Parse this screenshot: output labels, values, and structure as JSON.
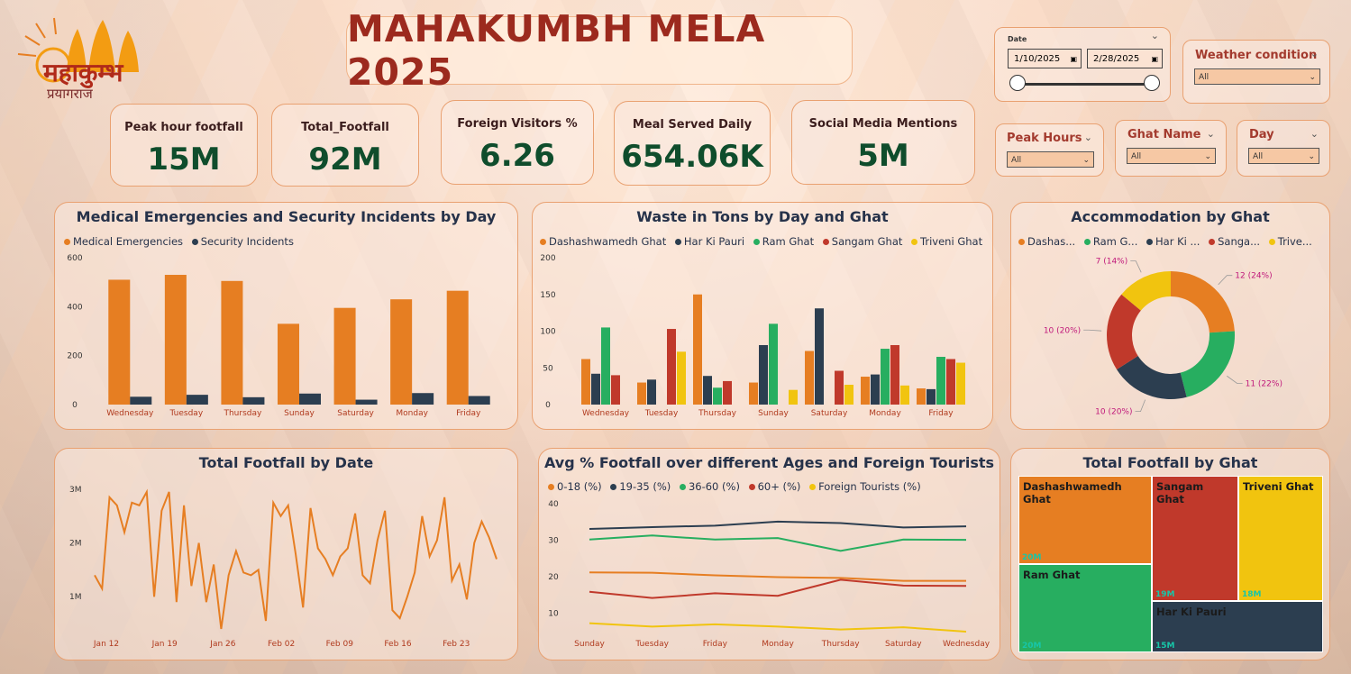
{
  "header": {
    "title": "MAHAKUMBH MELA 2025",
    "logo_text_main": "महाकुम्भ",
    "logo_text_sub": "प्रयागराज"
  },
  "kpis": [
    {
      "label": "Peak hour footfall",
      "value": "15M"
    },
    {
      "label": "Total_Footfall",
      "value": "92M"
    },
    {
      "label": "Foreign Visitors %",
      "value": "6.26"
    },
    {
      "label": "Meal Served Daily",
      "value": "654.06K"
    },
    {
      "label": "Social Media Mentions",
      "value": "5M"
    }
  ],
  "filters": {
    "date": {
      "label": "Date",
      "start": "1/10/2025",
      "end": "2/28/2025"
    },
    "weather": {
      "label": "Weather condition",
      "value": "All"
    },
    "peak_hours": {
      "label": "Peak Hours",
      "value": "All"
    },
    "ghat_name": {
      "label": "Ghat Name",
      "value": "All"
    },
    "day": {
      "label": "Day",
      "value": "All"
    }
  },
  "colors": {
    "orange": "#e67e22",
    "navy": "#2c3e50",
    "green": "#27ae60",
    "red": "#c0392b",
    "yellow": "#f1c40f"
  },
  "chart_data": [
    {
      "type": "bar",
      "title": "Medical Emergencies and Security Incidents by Day",
      "categories": [
        "Wednesday",
        "Tuesday",
        "Thursday",
        "Sunday",
        "Saturday",
        "Monday",
        "Friday"
      ],
      "series": [
        {
          "name": "Medical Emergencies",
          "color": "#e67e22",
          "values": [
            510,
            530,
            505,
            330,
            395,
            430,
            465
          ]
        },
        {
          "name": "Security Incidents",
          "color": "#2c3e50",
          "values": [
            32,
            40,
            30,
            45,
            20,
            47,
            35
          ]
        }
      ],
      "yticks": [
        "0",
        "200",
        "400",
        "600"
      ],
      "ylim": [
        0,
        600
      ]
    },
    {
      "type": "bar",
      "title": "Waste in Tons by Day and Ghat",
      "categories": [
        "Wednesday",
        "Tuesday",
        "Thursday",
        "Sunday",
        "Saturday",
        "Monday",
        "Friday"
      ],
      "series": [
        {
          "name": "Dashashwamedh Ghat",
          "color": "#e67e22",
          "values": [
            62,
            30,
            150,
            30,
            73,
            38,
            22
          ]
        },
        {
          "name": "Har Ki Pauri",
          "color": "#2c3e50",
          "values": [
            42,
            34,
            39,
            81,
            131,
            41,
            21
          ]
        },
        {
          "name": "Ram Ghat",
          "color": "#27ae60",
          "values": [
            105,
            0,
            23,
            110,
            0,
            76,
            65
          ]
        },
        {
          "name": "Sangam Ghat",
          "color": "#c0392b",
          "values": [
            40,
            103,
            32,
            0,
            46,
            81,
            62
          ]
        },
        {
          "name": "Triveni Ghat",
          "color": "#f1c40f",
          "values": [
            0,
            72,
            0,
            20,
            27,
            26,
            57
          ]
        }
      ],
      "yticks": [
        "0",
        "50",
        "100",
        "150",
        "200"
      ],
      "ylim": [
        0,
        200
      ]
    },
    {
      "type": "pie",
      "title": "Accommodation by Ghat",
      "legend": [
        "Dashas...",
        "Ram G...",
        "Har Ki ...",
        "Sanga...",
        "Trive..."
      ],
      "slices": [
        {
          "name": "Dashashwamedh Ghat",
          "value": 12,
          "label": "12 (24%)",
          "color": "#e67e22"
        },
        {
          "name": "Ram Ghat",
          "value": 11,
          "label": "11 (22%)",
          "color": "#27ae60"
        },
        {
          "name": "Har Ki Pauri",
          "value": 10,
          "label": "10 (20%)",
          "color": "#2c3e50"
        },
        {
          "name": "Sangam Ghat",
          "value": 10,
          "label": "10 (20%)",
          "color": "#c0392b"
        },
        {
          "name": "Triveni Ghat",
          "value": 7,
          "label": "7 (14%)",
          "color": "#f1c40f"
        }
      ]
    },
    {
      "type": "line",
      "title": "Total Footfall by Date",
      "xticks": [
        "Jan 12",
        "Jan 19",
        "Jan 26",
        "Feb 02",
        "Feb 09",
        "Feb 16",
        "Feb 23"
      ],
      "yticks": [
        "1M",
        "2M",
        "3M"
      ],
      "values": [
        1.4,
        1.15,
        2.85,
        2.7,
        2.2,
        2.75,
        2.7,
        2.95,
        1.0,
        2.6,
        2.95,
        0.9,
        2.7,
        1.2,
        2.0,
        0.9,
        1.6,
        0.4,
        1.4,
        1.85,
        1.45,
        1.4,
        1.5,
        0.55,
        2.75,
        2.5,
        2.7,
        1.8,
        0.8,
        2.65,
        1.9,
        1.7,
        1.4,
        1.75,
        1.9,
        2.55,
        1.4,
        1.25,
        2.05,
        2.6,
        0.75,
        0.6,
        1.0,
        1.45,
        2.5,
        1.75,
        2.05,
        2.85,
        1.3,
        1.6,
        0.95,
        2.0,
        2.4,
        2.1,
        1.7
      ]
    },
    {
      "type": "line",
      "title": "Avg % Footfall over different Ages and Foreign Tourists",
      "categories": [
        "Sunday",
        "Tuesday",
        "Friday",
        "Monday",
        "Thursday",
        "Saturday",
        "Wednesday"
      ],
      "yticks": [
        "10",
        "20",
        "30",
        "40"
      ],
      "ylim": [
        5,
        40
      ],
      "series": [
        {
          "name": "0-18 (%)",
          "color": "#e67e22",
          "values": [
            21.2,
            21.1,
            20.4,
            19.9,
            19.7,
            18.9,
            18.9
          ]
        },
        {
          "name": "19-35 (%)",
          "color": "#2c3e50",
          "values": [
            33.1,
            33.6,
            34.0,
            35.1,
            34.7,
            33.5,
            33.8
          ]
        },
        {
          "name": "36-60 (%)",
          "color": "#27ae60",
          "values": [
            30.2,
            31.3,
            30.2,
            30.6,
            27.1,
            30.2,
            30.1
          ]
        },
        {
          "name": "60+ (%)",
          "color": "#c0392b",
          "values": [
            15.9,
            14.2,
            15.5,
            14.8,
            19.2,
            17.6,
            17.5
          ]
        },
        {
          "name": "Foreign Tourists (%)",
          "color": "#f1c40f",
          "values": [
            7.3,
            6.4,
            7.0,
            6.4,
            5.6,
            6.2,
            5.0
          ]
        }
      ]
    },
    {
      "type": "table",
      "title": "Total Footfall by Ghat",
      "items": [
        {
          "name": "Dashashwamedh Ghat",
          "value": "20M",
          "color": "#e67e22"
        },
        {
          "name": "Sangam Ghat",
          "value": "19M",
          "color": "#c0392b"
        },
        {
          "name": "Triveni Ghat",
          "value": "18M",
          "color": "#f1c40f"
        },
        {
          "name": "Ram Ghat",
          "value": "20M",
          "color": "#27ae60"
        },
        {
          "name": "Har Ki Pauri",
          "value": "15M",
          "color": "#2c3e50"
        }
      ]
    }
  ]
}
